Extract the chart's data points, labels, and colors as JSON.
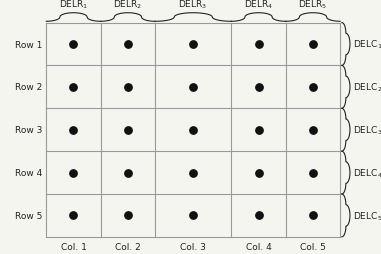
{
  "nrows": 5,
  "ncols": 5,
  "row_labels": [
    "Row 1",
    "Row 2",
    "Row 3",
    "Row 4",
    "Row 5"
  ],
  "col_labels": [
    "Col. 1",
    "Col. 2",
    "Col. 3",
    "Col. 4",
    "Col. 5"
  ],
  "delr_labels": [
    "DELR$_1$",
    "DELR$_2$",
    "DELR$_3$",
    "DELR$_4$",
    "DELR$_5$"
  ],
  "delc_labels": [
    "DELC$_1$",
    "DELC$_2$",
    "DELC$_3$",
    "DELC$_4$",
    "DELC$_5$"
  ],
  "grid_color": "#999999",
  "dot_color": "#111111",
  "dot_size": 28,
  "background_color": "#f5f5f0",
  "text_color": "#222222",
  "font_size": 6.5,
  "col_widths": [
    1.0,
    1.0,
    1.4,
    1.0,
    1.0
  ],
  "row_heights": [
    1.0,
    1.0,
    1.0,
    1.0,
    1.0
  ]
}
